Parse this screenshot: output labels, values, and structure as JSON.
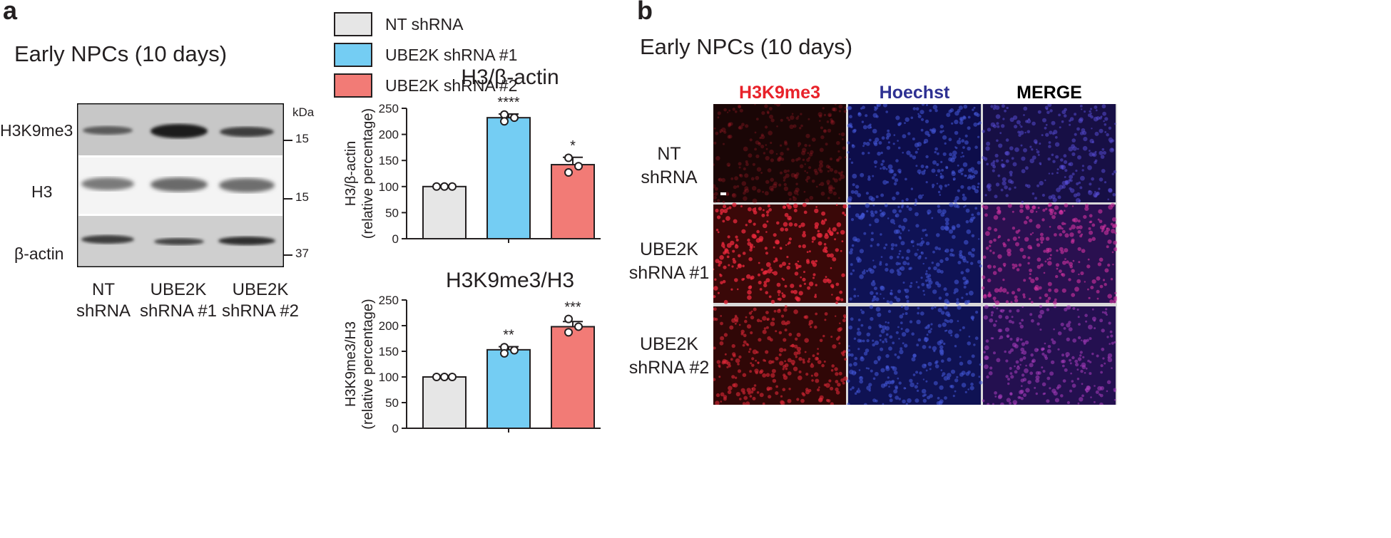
{
  "panel_a": {
    "letter": "a",
    "subtitle": "Early NPCs (10 days)",
    "legend": [
      {
        "label": "NT shRNA",
        "color": "#e6e6e6"
      },
      {
        "label": "UBE2K shRNA #1",
        "color": "#74cdf3"
      },
      {
        "label": "UBE2K shRNA #2",
        "color": "#f27b76"
      }
    ],
    "blot": {
      "kda_header": "kDa",
      "rows": [
        {
          "label": "H3K9me3",
          "kda": "15"
        },
        {
          "label": "H3",
          "kda": "15"
        },
        {
          "label": "β-actin",
          "kda": "37"
        }
      ],
      "lanes": [
        {
          "line1": "NT",
          "line2": "shRNA"
        },
        {
          "line1": "UBE2K",
          "line2": "shRNA #1"
        },
        {
          "line1": "UBE2K",
          "line2": "shRNA #2"
        }
      ]
    }
  },
  "chart_data": [
    {
      "type": "bar",
      "title": "H3/β-actin",
      "ylabel_line1": "H3/β-actin",
      "ylabel_line2": "(relative percentage)",
      "xlabel": "",
      "ylim": [
        0,
        250
      ],
      "yticks": [
        "0",
        "50",
        "100",
        "150",
        "200",
        "250"
      ],
      "categories": [
        "NT shRNA",
        "UBE2K shRNA #1",
        "UBE2K shRNA #2"
      ],
      "values": [
        100,
        232,
        142
      ],
      "errors": [
        0,
        7,
        14
      ],
      "points": [
        [
          100,
          100,
          100
        ],
        [
          238,
          232,
          225
        ],
        [
          155,
          139,
          127
        ]
      ],
      "significance": [
        "",
        "****",
        "*"
      ],
      "colors": [
        "#e6e6e6",
        "#74cdf3",
        "#f27b76"
      ]
    },
    {
      "type": "bar",
      "title": "H3K9me3/H3",
      "ylabel_line1": "H3K9me3/H3",
      "ylabel_line2": "(relative percentage)",
      "xlabel": "",
      "ylim": [
        0,
        250
      ],
      "yticks": [
        "0",
        "50",
        "100",
        "150",
        "200",
        "250"
      ],
      "categories": [
        "NT shRNA",
        "UBE2K shRNA #1",
        "UBE2K shRNA #2"
      ],
      "values": [
        100,
        153,
        198
      ],
      "errors": [
        0,
        6,
        10
      ],
      "points": [
        [
          100,
          100,
          100
        ],
        [
          158,
          152,
          146
        ],
        [
          213,
          198,
          187
        ]
      ],
      "significance": [
        "",
        "**",
        "***"
      ],
      "colors": [
        "#e6e6e6",
        "#74cdf3",
        "#f27b76"
      ]
    }
  ],
  "panel_b": {
    "letter": "b",
    "subtitle": "Early NPCs (10 days)",
    "columns": [
      {
        "label": "H3K9me3",
        "color": "#e8222a"
      },
      {
        "label": "Hoechst",
        "color": "#2e3192"
      },
      {
        "label": "MERGE",
        "color": "#000000"
      }
    ],
    "rows": [
      {
        "line1": "NT",
        "line2": "shRNA"
      },
      {
        "line1": "UBE2K",
        "line2": "shRNA #1"
      },
      {
        "line1": "UBE2K",
        "line2": "shRNA #2"
      }
    ]
  }
}
